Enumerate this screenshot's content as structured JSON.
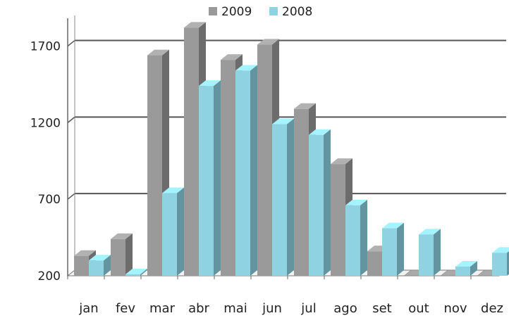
{
  "chart_data": {
    "type": "bar",
    "title": "",
    "xlabel": "",
    "ylabel": "",
    "categories": [
      "jan",
      "fev",
      "mar",
      "abr",
      "mai",
      "jun",
      "jul",
      "ago",
      "set",
      "out",
      "nov",
      "dez"
    ],
    "series": [
      {
        "name": "2009",
        "color": "#9a9a9a",
        "values": [
          330,
          440,
          1640,
          1820,
          1610,
          1710,
          1290,
          930,
          360,
          200,
          200,
          200
        ]
      },
      {
        "name": "2008",
        "color": "#8fd3e3",
        "values": [
          300,
          210,
          740,
          1440,
          1540,
          1190,
          1120,
          660,
          510,
          470,
          260,
          350
        ]
      }
    ],
    "ylim": [
      200,
      1900
    ],
    "yticks": [
      200,
      700,
      1200,
      1700
    ],
    "grid": true,
    "legend_position": "top-center",
    "style": "3d-clustered-column"
  }
}
